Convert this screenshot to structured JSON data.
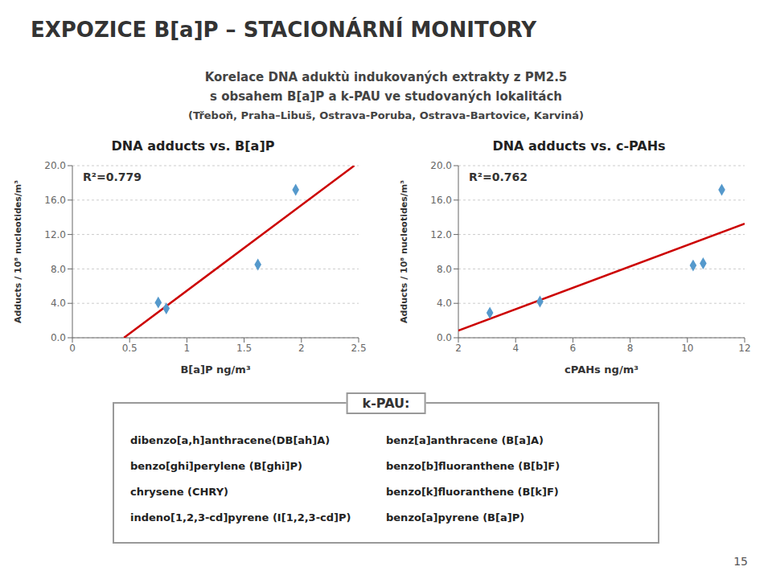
{
  "title": "EXPOZICE B[a]P – STACIONÁRNÍ MONITORY",
  "subtitle": [
    "Korelace DNA aduktù indukovaných extrakty z PM2.5",
    "s obsahem  B[a]P a k-PAU ve studovaných  lokalitách",
    "(Třeboň, Praha–Libuš, Ostrava-Poruba, Ostrava-Bartovice, Karviná)"
  ],
  "chart_data": [
    {
      "type": "scatter",
      "title": "DNA adducts vs. B[a]P",
      "x_label": "B[a]P ng/m³",
      "y_label": "Adducts / 10⁸ nucleotides/m³",
      "xlim": [
        0,
        2.5
      ],
      "xticks": [
        0,
        0.5,
        1,
        1.5,
        2,
        2.5
      ],
      "ylim": [
        0,
        20.0
      ],
      "yticks": [
        {
          "value": 0.0,
          "label": "0.0"
        },
        {
          "value": 4.0,
          "label": "4.0"
        },
        {
          "value": 8.0,
          "label": "8.0"
        },
        {
          "value": 12.0,
          "label": "12.0"
        },
        {
          "value": 16.0,
          "label": "16.0"
        },
        {
          "value": 20.0,
          "label": "20.0"
        }
      ],
      "grid": true,
      "annotations": [
        "R²=0.779"
      ],
      "series": [
        {
          "type": "line",
          "color": "#cc0000",
          "x": [
            0.4504,
            2.4615
          ],
          "values": [
            0,
            20
          ]
        },
        {
          "type": "scatter",
          "marker": "diamond",
          "color": "#5599cc",
          "x": [
            0.75,
            0.82,
            1.62,
            1.95
          ],
          "values": [
            4.1,
            3.4,
            8.5,
            17.2
          ]
        }
      ]
    },
    {
      "type": "scatter",
      "title": "DNA adducts vs. c-PAHs",
      "x_label": "cPAHs ng/m³",
      "y_label": "Adducts / 10⁸ nucleotides/m³",
      "xlim": [
        2,
        12
      ],
      "xticks": [
        2,
        4,
        6,
        8,
        10,
        12
      ],
      "ylim": [
        0,
        20.0
      ],
      "yticks": [
        {
          "value": 0.0,
          "label": "0.0"
        },
        {
          "value": 4.0,
          "label": "4.0"
        },
        {
          "value": 8.0,
          "label": "8.0"
        },
        {
          "value": 12.0,
          "label": "12.0"
        },
        {
          "value": 16.0,
          "label": "16.0"
        },
        {
          "value": 20.0,
          "label": "20.0"
        }
      ],
      "grid": true,
      "annotations": [
        "R²=0.762"
      ],
      "series": [
        {
          "type": "line",
          "color": "#cc0000",
          "x": [
            2,
            12
          ],
          "values": [
            0.841,
            13.264
          ]
        },
        {
          "type": "scatter",
          "marker": "diamond",
          "color": "#5599cc",
          "x": [
            3.1,
            4.85,
            10.2,
            10.55,
            11.2
          ],
          "values": [
            2.9,
            4.2,
            8.4,
            8.65,
            17.2
          ]
        }
      ]
    }
  ],
  "annotations": {
    "box_title": "k-PAU:",
    "box_columns": [
      [
        "dibenzo[a,h]anthracene(DB[ah]A)",
        "benzo[ghi]perylene (B[ghi]P)",
        "chrysene (CHRY)",
        "indeno[1,2,3-cd]pyrene (I[1,2,3-cd]P)"
      ],
      [
        "benz[a]anthracene (B[a]A)",
        "benzo[b]fluoranthene (B[b]F)",
        "benzo[k]fluoranthene (B[k]F)",
        "benzo[a]pyrene (B[a]P)"
      ]
    ],
    "page_number": "15"
  }
}
